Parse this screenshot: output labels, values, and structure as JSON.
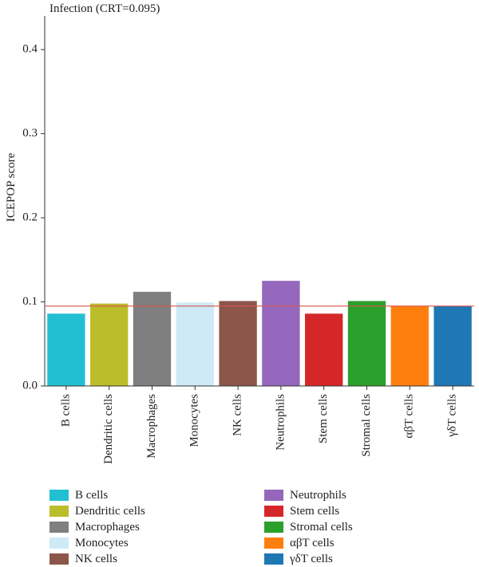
{
  "chart_data": {
    "type": "bar",
    "title": "Infection (CRT=0.095)",
    "ylabel": "ICEPOP score",
    "xlabel": "",
    "ylim": [
      0,
      0.44
    ],
    "yticks": [
      "0.0",
      "0.1",
      "0.2",
      "0.3",
      "0.4"
    ],
    "ytick_values": [
      0,
      0.1,
      0.2,
      0.3,
      0.4
    ],
    "categories": [
      "B cells",
      "Dendritic cells",
      "Macrophages",
      "Monocytes",
      "NK cells",
      "Neutrophils",
      "Stem cells",
      "Stromal cells",
      "αβT cells",
      "γδT cells"
    ],
    "values": [
      0.086,
      0.098,
      0.112,
      0.099,
      0.101,
      0.125,
      0.086,
      0.101,
      0.095,
      0.095
    ],
    "colors": [
      "#22bfd2",
      "#bcbd2b",
      "#7f7f7f",
      "#cdeaf6",
      "#8c564b",
      "#9467bd",
      "#d62728",
      "#2ca02c",
      "#ff7f0e",
      "#1f77b4"
    ],
    "threshold": 0.095,
    "threshold_color": "#d9534f",
    "grid": false,
    "legend_position": "bottom"
  }
}
